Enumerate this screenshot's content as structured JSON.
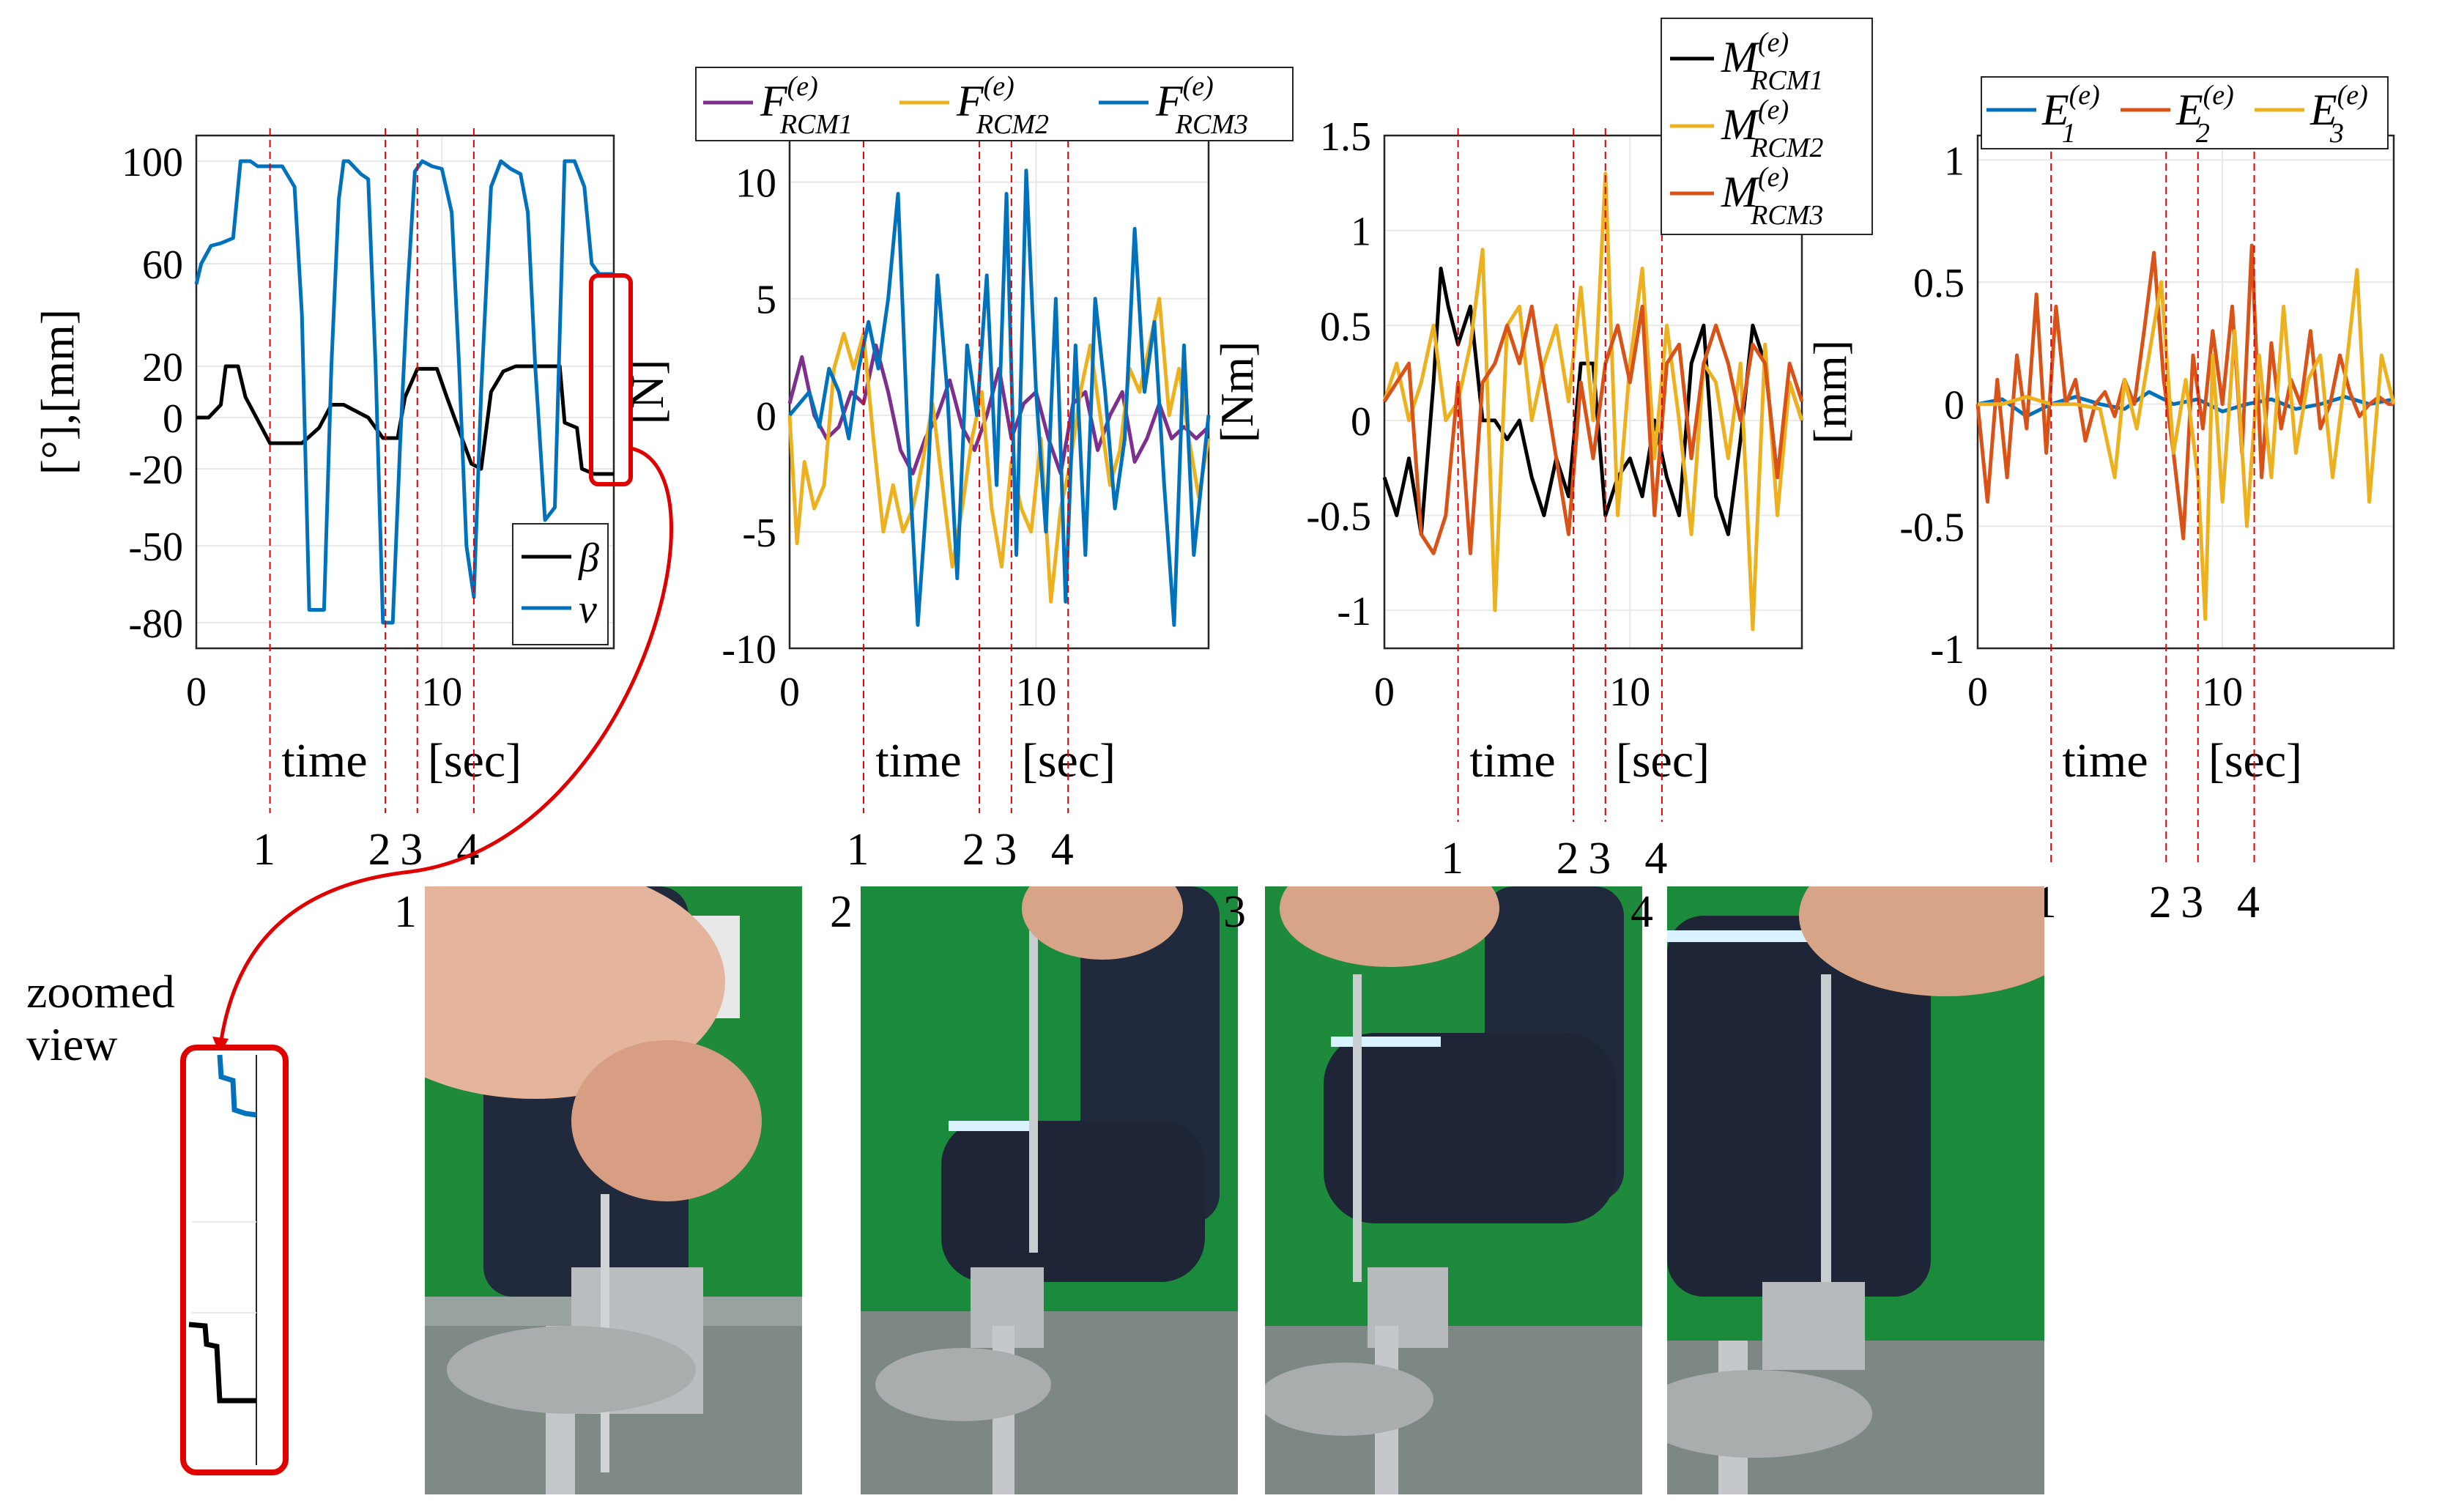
{
  "colors": {
    "blue": "#0072BD",
    "orange": "#D95319",
    "yellow": "#EDB120",
    "purple": "#7E2F8E",
    "black": "#000000",
    "marker": "#e00000",
    "grid": "#e8e8e8"
  },
  "event_labels": [
    "1",
    "2",
    "3",
    "4"
  ],
  "event_times": [
    3.0,
    7.7,
    9.0,
    11.3
  ],
  "zoom": {
    "text_line1": "zoomed",
    "text_line2": "view"
  },
  "photos": [
    {
      "label": "1"
    },
    {
      "label": "2"
    },
    {
      "label": "3"
    },
    {
      "label": "4"
    }
  ],
  "chart_data": [
    {
      "type": "line",
      "ylabel": "[°],[mm]",
      "xlabel_parts": [
        "time",
        "[sec]"
      ],
      "xlim": [
        0,
        17
      ],
      "ylim": [
        -90,
        110
      ],
      "xticks": [
        0,
        10
      ],
      "yticks": [
        100,
        60,
        20,
        0,
        -20,
        -50,
        -80
      ],
      "legend": {
        "placement": "bottom-right",
        "entries": [
          "β",
          "v"
        ]
      },
      "series": [
        {
          "name": "β",
          "color_key": "black",
          "x": [
            0,
            0.5,
            1.0,
            1.2,
            1.7,
            2.0,
            3.0,
            4.3,
            5.0,
            5.5,
            6.0,
            7.0,
            7.6,
            8.2,
            8.5,
            9.0,
            9.8,
            10.2,
            11.2,
            11.6,
            12.0,
            12.5,
            13.0,
            14.0,
            14.3,
            14.8,
            15.0,
            15.5,
            15.7,
            16.2,
            17.0
          ],
          "y": [
            0,
            0,
            5,
            20,
            20,
            8,
            -10,
            -10,
            -4,
            5,
            5,
            0,
            -8,
            -8,
            8,
            19,
            19,
            8,
            -18,
            -20,
            10,
            18,
            20,
            20,
            20,
            20,
            -2,
            -4,
            -20,
            -22,
            -22
          ]
        },
        {
          "name": "v",
          "color_key": "blue",
          "x": [
            0,
            0.2,
            0.6,
            1.0,
            1.5,
            1.8,
            2.2,
            2.5,
            3.0,
            3.5,
            4.0,
            4.3,
            4.6,
            5.2,
            5.5,
            5.8,
            6.0,
            6.2,
            6.7,
            7.0,
            7.3,
            7.6,
            8.0,
            8.3,
            8.6,
            8.9,
            9.2,
            9.6,
            10.0,
            10.4,
            10.7,
            11.0,
            11.3,
            11.6,
            12.0,
            12.4,
            12.8,
            13.2,
            13.5,
            13.8,
            14.2,
            14.6,
            15.0,
            15.4,
            15.8,
            16.1,
            16.4,
            17.0
          ],
          "y": [
            52,
            60,
            67,
            68,
            70,
            100,
            100,
            98,
            98,
            98,
            90,
            40,
            -75,
            -75,
            20,
            85,
            100,
            100,
            95,
            93,
            20,
            -80,
            -80,
            -10,
            50,
            96,
            100,
            98,
            97,
            80,
            20,
            -50,
            -70,
            10,
            90,
            100,
            97,
            95,
            80,
            20,
            -40,
            -35,
            100,
            100,
            90,
            60,
            56,
            56
          ]
        }
      ]
    },
    {
      "type": "line",
      "ylabel": "[N]",
      "xlabel_parts": [
        "time",
        "[sec]"
      ],
      "xlim": [
        0,
        17
      ],
      "ylim": [
        -10,
        12
      ],
      "xticks": [
        0,
        10
      ],
      "yticks": [
        10,
        5,
        0,
        -5,
        -10
      ],
      "legend": {
        "placement": "top-outside",
        "entries": [
          "F(e) RCM1",
          "F(e) RCM2",
          "F(e) RCM3"
        ]
      },
      "series": [
        {
          "name": "F(e) RCM1",
          "color_key": "purple",
          "x": [
            0,
            0.5,
            1.0,
            1.5,
            2.0,
            2.5,
            3.0,
            3.5,
            4.0,
            4.5,
            5.0,
            5.5,
            6.0,
            6.5,
            7.0,
            7.5,
            8.0,
            8.5,
            9.0,
            9.5,
            10.0,
            10.5,
            11.0,
            11.5,
            12.0,
            12.5,
            13.0,
            13.5,
            14.0,
            14.5,
            15.0,
            15.5,
            16.0,
            16.5,
            17.0
          ],
          "y": [
            0.5,
            2.5,
            0,
            -1,
            -0.5,
            1.0,
            0.5,
            3.0,
            1.0,
            -1.5,
            -2.5,
            -1.0,
            0.0,
            1.5,
            -0.5,
            -1.5,
            0.0,
            2.0,
            -1.0,
            0.5,
            1.0,
            -1.0,
            -2.5,
            0.5,
            1.0,
            -1.5,
            0.0,
            1.0,
            -2.0,
            -1.0,
            0.5,
            -1.0,
            -0.5,
            -1.0,
            -0.5
          ]
        },
        {
          "name": "F(e) RCM2",
          "color_key": "yellow",
          "x": [
            0,
            0.3,
            0.6,
            1.0,
            1.4,
            1.8,
            2.2,
            2.6,
            3.0,
            3.4,
            3.8,
            4.2,
            4.6,
            5.0,
            5.4,
            5.8,
            6.2,
            6.6,
            7.0,
            7.4,
            7.8,
            8.2,
            8.6,
            9.0,
            9.4,
            9.8,
            10.2,
            10.6,
            11.0,
            11.4,
            11.8,
            12.2,
            12.6,
            13.0,
            13.4,
            13.8,
            14.2,
            14.6,
            15.0,
            15.4,
            15.8,
            16.2,
            16.6,
            17.0
          ],
          "y": [
            0,
            -5.5,
            -2.0,
            -4.0,
            -3.0,
            2.0,
            3.5,
            2.0,
            3.5,
            -1.0,
            -5.0,
            -3.0,
            -5.0,
            -4.0,
            -2.0,
            0.5,
            -3.0,
            -6.5,
            -4.0,
            -1.0,
            1.0,
            -4.0,
            -6.5,
            -2.0,
            -4.0,
            -5.0,
            -1.0,
            -8.0,
            -4.0,
            -2.0,
            1.0,
            3.0,
            0.0,
            -3.0,
            -1.5,
            2.0,
            1.0,
            3.0,
            5.0,
            0.0,
            2.0,
            -1.0,
            -3.5,
            -1.0
          ]
        },
        {
          "name": "F(e) RCM3",
          "color_key": "blue",
          "x": [
            0,
            0.4,
            0.8,
            1.2,
            1.6,
            2.0,
            2.4,
            2.8,
            3.2,
            3.6,
            4.0,
            4.4,
            4.8,
            5.2,
            5.6,
            6.0,
            6.4,
            6.8,
            7.2,
            7.6,
            8.0,
            8.4,
            8.8,
            9.2,
            9.6,
            10.0,
            10.4,
            10.8,
            11.2,
            11.6,
            12.0,
            12.4,
            12.8,
            13.2,
            13.6,
            14.0,
            14.4,
            14.8,
            15.2,
            15.6,
            16.0,
            16.4,
            16.8,
            17.0
          ],
          "y": [
            0,
            0.5,
            1.0,
            -0.5,
            2.0,
            1.0,
            -1.0,
            2.0,
            4.0,
            2.0,
            5.0,
            9.5,
            -1.0,
            -9.0,
            -3.0,
            6.0,
            1.0,
            -7.0,
            3.0,
            0.0,
            6.0,
            -3.0,
            9.5,
            -6.0,
            10.5,
            1.0,
            -5.0,
            5.0,
            -8.0,
            3.0,
            -6.0,
            5.0,
            1.0,
            -4.0,
            -1.0,
            8.0,
            1.0,
            4.0,
            -3.0,
            -9.0,
            3.0,
            -6.0,
            -2.0,
            0.0
          ]
        }
      ]
    },
    {
      "type": "line",
      "ylabel": "[Nm]",
      "xlabel_parts": [
        "time",
        "[sec]"
      ],
      "xlim": [
        0,
        17
      ],
      "ylim": [
        -1.2,
        1.5
      ],
      "xticks": [
        0,
        10
      ],
      "yticks": [
        1.5,
        1,
        0.5,
        0,
        -0.5,
        -1
      ],
      "legend": {
        "placement": "top-right",
        "entries": [
          "M(e) RCM1",
          "M(e) RCM2",
          "M(e) RCM3"
        ]
      },
      "series": [
        {
          "name": "M(e) RCM1",
          "color_key": "black",
          "x": [
            0,
            0.5,
            1.0,
            1.5,
            2.0,
            2.3,
            2.6,
            3.0,
            3.5,
            4.0,
            4.5,
            5.0,
            5.5,
            6.0,
            6.5,
            7.0,
            7.5,
            8.0,
            8.5,
            9.0,
            9.5,
            10.0,
            10.5,
            11.0,
            11.5,
            12.0,
            12.5,
            13.0,
            13.5,
            14.0,
            14.5,
            15.0,
            15.5,
            16.0,
            16.5,
            17.0
          ],
          "y": [
            -0.3,
            -0.5,
            -0.2,
            -0.6,
            0.2,
            0.8,
            0.6,
            0.4,
            0.6,
            0.0,
            0.0,
            -0.1,
            0.0,
            -0.3,
            -0.5,
            -0.2,
            -0.4,
            0.3,
            0.3,
            -0.5,
            -0.3,
            -0.2,
            -0.4,
            0.0,
            -0.3,
            -0.5,
            0.3,
            0.5,
            -0.4,
            -0.6,
            -0.1,
            0.5,
            0.3,
            -0.3,
            0.2,
            0.0
          ]
        },
        {
          "name": "M(e) RCM2",
          "color_key": "yellow",
          "x": [
            0,
            0.5,
            1.0,
            1.5,
            2.0,
            2.5,
            3.0,
            3.5,
            4.0,
            4.5,
            5.0,
            5.5,
            6.0,
            6.5,
            7.0,
            7.5,
            8.0,
            8.5,
            9.0,
            9.5,
            10.0,
            10.5,
            11.0,
            11.5,
            12.0,
            12.5,
            13.0,
            13.5,
            14.0,
            14.5,
            15.0,
            15.5,
            16.0,
            16.5,
            17.0
          ],
          "y": [
            0.1,
            0.3,
            0.0,
            0.2,
            0.5,
            0.0,
            0.1,
            0.4,
            0.9,
            -1.0,
            0.5,
            0.6,
            0.0,
            0.3,
            0.5,
            0.1,
            0.7,
            0.0,
            1.3,
            -0.5,
            0.3,
            0.8,
            -0.2,
            0.5,
            0.0,
            -0.6,
            0.3,
            0.2,
            -0.2,
            0.3,
            -1.1,
            0.4,
            -0.5,
            0.2,
            0.0
          ]
        },
        {
          "name": "M(e) RCM3",
          "color_key": "orange",
          "x": [
            0,
            0.5,
            1.0,
            1.5,
            2.0,
            2.5,
            3.0,
            3.5,
            4.0,
            4.5,
            5.0,
            5.5,
            6.0,
            6.5,
            7.0,
            7.5,
            8.0,
            8.5,
            9.0,
            9.5,
            10.0,
            10.5,
            11.0,
            11.5,
            12.0,
            12.5,
            13.0,
            13.5,
            14.0,
            14.5,
            15.0,
            15.5,
            16.0,
            16.5,
            17.0
          ],
          "y": [
            0.1,
            0.2,
            0.3,
            -0.6,
            -0.7,
            -0.5,
            0.2,
            -0.7,
            0.2,
            0.3,
            0.5,
            0.3,
            0.6,
            0.2,
            -0.2,
            -0.6,
            0.2,
            -0.2,
            0.3,
            0.5,
            0.2,
            0.6,
            -0.5,
            0.3,
            0.4,
            -0.2,
            0.3,
            0.5,
            0.3,
            0.0,
            0.4,
            0.3,
            -0.3,
            0.3,
            0.1
          ]
        }
      ]
    },
    {
      "type": "line",
      "ylabel": "[mm]",
      "xlabel_parts": [
        "time",
        "[sec]"
      ],
      "xlim": [
        0,
        17
      ],
      "ylim": [
        -1,
        1.1
      ],
      "xticks": [
        0,
        10
      ],
      "yticks": [
        1,
        0.5,
        0,
        -0.5,
        -1
      ],
      "legend": {
        "placement": "top",
        "entries": [
          "E1(e)",
          "E2(e)",
          "E3(e)"
        ]
      },
      "series": [
        {
          "name": "E1(e)",
          "color_key": "blue",
          "x": [
            0,
            1.0,
            2.0,
            3.0,
            4.0,
            5.0,
            6.0,
            7.0,
            8.0,
            9.0,
            10.0,
            11.0,
            12.0,
            13.0,
            14.0,
            15.0,
            16.0,
            17.0
          ],
          "y": [
            0,
            0.02,
            -0.05,
            0.0,
            0.03,
            0.0,
            -0.02,
            0.05,
            0.0,
            0.02,
            -0.03,
            0.0,
            0.02,
            -0.02,
            0.0,
            0.03,
            0.0,
            0.02
          ]
        },
        {
          "name": "E2(e)",
          "color_key": "orange",
          "x": [
            0,
            0.4,
            0.8,
            1.2,
            1.6,
            2.0,
            2.4,
            2.8,
            3.2,
            3.6,
            4.0,
            4.4,
            4.8,
            5.2,
            5.6,
            6.0,
            6.4,
            6.8,
            7.2,
            7.6,
            8.0,
            8.4,
            8.8,
            9.2,
            9.6,
            10.0,
            10.4,
            10.8,
            11.2,
            11.6,
            12.0,
            12.4,
            12.8,
            13.2,
            13.6,
            14.0,
            14.4,
            14.8,
            15.2,
            15.6,
            16.0,
            16.4,
            16.8,
            17.0
          ],
          "y": [
            0,
            -0.4,
            0.1,
            -0.3,
            0.2,
            -0.1,
            0.45,
            -0.2,
            0.4,
            0.0,
            0.1,
            -0.15,
            0.0,
            0.05,
            -0.05,
            0.1,
            0.0,
            0.3,
            0.62,
            0.1,
            -0.2,
            -0.55,
            0.2,
            -0.1,
            0.3,
            0.0,
            0.4,
            -0.2,
            0.65,
            -0.3,
            0.25,
            -0.1,
            0.1,
            0.0,
            0.3,
            -0.1,
            0.0,
            0.2,
            0.05,
            -0.05,
            0.0,
            0.03,
            0.0,
            0.0
          ]
        },
        {
          "name": "E3(e)",
          "color_key": "yellow",
          "x": [
            0,
            1.0,
            2.0,
            3.0,
            4.0,
            5.0,
            5.6,
            6.0,
            6.5,
            7.0,
            7.5,
            8.0,
            8.5,
            9.0,
            9.3,
            9.6,
            10.0,
            10.5,
            11.0,
            11.5,
            12.0,
            12.5,
            13.0,
            13.5,
            14.0,
            14.5,
            15.0,
            15.5,
            16.0,
            16.5,
            17.0
          ],
          "y": [
            0,
            0.0,
            0.03,
            0.0,
            0.0,
            -0.02,
            -0.3,
            0.1,
            -0.1,
            0.2,
            0.5,
            -0.2,
            0.1,
            -0.3,
            -0.88,
            0.2,
            -0.4,
            0.3,
            -0.5,
            0.2,
            -0.3,
            0.4,
            -0.2,
            0.1,
            0.2,
            -0.3,
            0.1,
            0.55,
            -0.4,
            0.2,
            0.0
          ]
        }
      ]
    }
  ]
}
